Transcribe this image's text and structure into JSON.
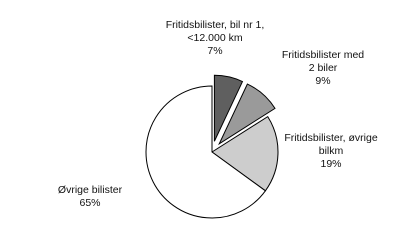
{
  "chart_data": {
    "type": "pie",
    "categories": [
      "Fritidsbilister, bil nr 1, <12.000 km",
      "Fritidsbilister med 2 biler",
      "Fritidsbilister, øvrige bilkm",
      "Øvrige bilister"
    ],
    "values": [
      7,
      9,
      19,
      65
    ],
    "value_labels": [
      "7%",
      "9%",
      "19%",
      "65%"
    ],
    "colors": [
      "#5f5f5f",
      "#9a9a9a",
      "#cdcdcd",
      "#ffffff"
    ],
    "exploded": [
      true,
      true,
      false,
      false
    ]
  }
}
